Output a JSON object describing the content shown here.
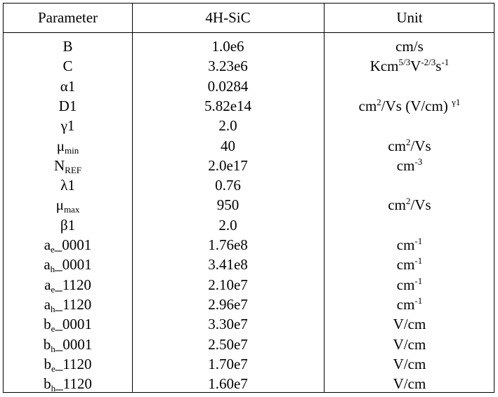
{
  "table": {
    "headers": [
      "Parameter",
      "4H-SiC",
      "Unit"
    ],
    "rows": [
      {
        "param": "B",
        "value": "1.0e6",
        "unit": "cm/s"
      },
      {
        "param": "C",
        "value": "3.23e6",
        "unit": "Kcm<sup>5/3</sup>V<sup>-2/3</sup>s<sup>-1</sup>"
      },
      {
        "param": "α1",
        "value": "0.0284",
        "unit": ""
      },
      {
        "param": "D1",
        "value": "5.82e14",
        "unit": "cm<sup>2</sup>/Vs (V/cm) <sup>γ1</sup>"
      },
      {
        "param": "γ1",
        "value": "2.0",
        "unit": ""
      },
      {
        "param": "μ<sub>min</sub>",
        "value": "40",
        "unit": "cm<sup>2</sup>/Vs"
      },
      {
        "param": "N<sub>REF</sub>",
        "value": "2.0e17",
        "unit": "cm<sup>-3</sup>"
      },
      {
        "param": "λ1",
        "value": "0.76",
        "unit": ""
      },
      {
        "param": "μ<sub>max</sub>",
        "value": "950",
        "unit": "cm<sup>2</sup>/Vs"
      },
      {
        "param": "β1",
        "value": "2.0",
        "unit": ""
      },
      {
        "param": "a<sub>e</sub>_0001",
        "value": "1.76e8",
        "unit": "cm<sup>-1</sup>"
      },
      {
        "param": "a<sub>h</sub>_0001",
        "value": "3.41e8",
        "unit": "cm<sup>-1</sup>"
      },
      {
        "param": "a<sub>e</sub>_1120",
        "value": "2.10e7",
        "unit": "cm<sup>-1</sup>"
      },
      {
        "param": "a<sub>h</sub>_1120",
        "value": "2.96e7",
        "unit": "cm<sup>-1</sup>"
      },
      {
        "param": "b<sub>e</sub>_0001",
        "value": "3.30e7",
        "unit": "V/cm"
      },
      {
        "param": "b<sub>h</sub>_0001",
        "value": "2.50e7",
        "unit": "V/cm"
      },
      {
        "param": "b<sub>e</sub>_1120",
        "value": "1.70e7",
        "unit": "V/cm"
      },
      {
        "param": "b<sub>h</sub>_1120",
        "value": "1.60e7",
        "unit": "V/cm"
      }
    ]
  }
}
